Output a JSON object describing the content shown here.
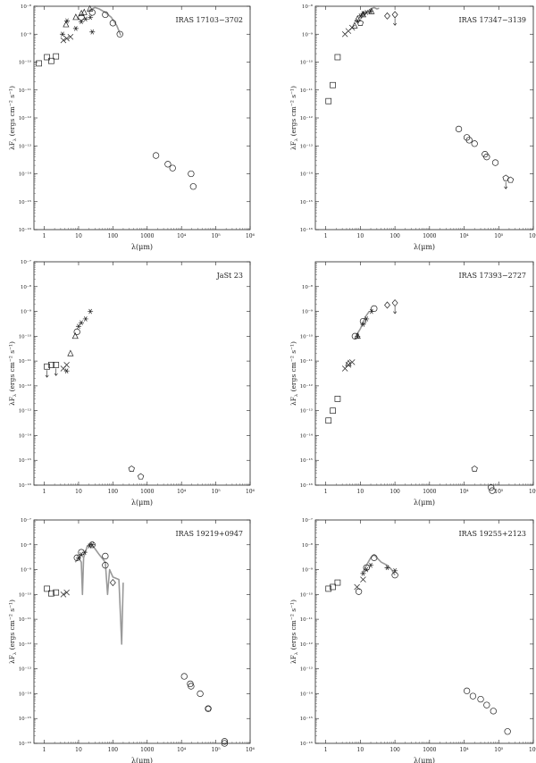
{
  "figure": {
    "ylabel_main": "λF",
    "ylabel_sub": "λ",
    "ylabel_units": "(ergs cm⁻² s⁻¹)",
    "xlabel": "λ(μm)"
  },
  "x_ticks": [
    {
      "v": 1,
      "label": "1"
    },
    {
      "v": 10,
      "label": "10"
    },
    {
      "v": 100,
      "label": "100"
    },
    {
      "v": 1000,
      "label": "1000"
    },
    {
      "v": 10000,
      "label": "10⁴"
    },
    {
      "v": 100000,
      "label": "10⁵"
    },
    {
      "v": 1000000,
      "label": "10⁶"
    }
  ],
  "y_tick_labels": {
    "-7": "10⁻⁷",
    "-8": "10⁻⁸",
    "-9": "10⁻⁹",
    "-10": "10⁻¹⁰",
    "-11": "10⁻¹¹",
    "-12": "10⁻¹²",
    "-13": "10⁻¹³",
    "-14": "10⁻¹⁴",
    "-15": "10⁻¹⁵",
    "-16": "10⁻¹⁶"
  },
  "chart_data": [
    {
      "type": "scatter",
      "title": "IRAS 17103−3702",
      "xscale": "log",
      "yscale": "log",
      "xlim": [
        0.5,
        1000000
      ],
      "ylim": [
        1e-16,
        1e-08
      ],
      "y_ticks": [
        -8,
        -9,
        -10,
        -11,
        -12,
        -13,
        -14,
        -15,
        -16
      ],
      "series": [
        {
          "marker": "square",
          "points": [
            [
              0.7,
              9e-11
            ],
            [
              1.2,
              1.5e-10
            ],
            [
              1.6,
              1.1e-10
            ],
            [
              2.2,
              1.6e-10
            ]
          ]
        },
        {
          "marker": "cross",
          "points": [
            [
              3.6,
              6e-10
            ],
            [
              4.5,
              7e-10
            ],
            [
              5.8,
              8e-10
            ]
          ]
        },
        {
          "marker": "triangle",
          "points": [
            [
              4.3,
              2.2e-09
            ],
            [
              8.3,
              4e-09
            ],
            [
              12.1,
              5.5e-09
            ],
            [
              14.6,
              6e-09
            ],
            [
              21.3,
              8e-09
            ]
          ]
        },
        {
          "marker": "asterisk",
          "points": [
            [
              3.4,
              1e-09
            ],
            [
              4.6,
              3e-09
            ],
            [
              8.3,
              1.6e-09
            ],
            [
              12,
              2.8e-09
            ],
            [
              16,
              3.5e-09
            ],
            [
              22,
              4e-09
            ],
            [
              25,
              1.2e-09
            ]
          ]
        },
        {
          "marker": "circle",
          "points": [
            [
              12,
              4e-09
            ],
            [
              25,
              6e-09
            ],
            [
              60,
              5e-09
            ],
            [
              100,
              2.5e-09
            ],
            [
              160,
              1e-09
            ],
            [
              1800,
              4.5e-14
            ],
            [
              4000,
              2.2e-14
            ],
            [
              5500,
              1.6e-14
            ],
            [
              19000,
              1e-14
            ],
            [
              22000,
              3.5e-15
            ]
          ]
        }
      ],
      "spectrum": [
        [
          20,
          7e-09
        ],
        [
          30,
          9e-09
        ],
        [
          40,
          8e-09
        ],
        [
          60,
          6e-09
        ],
        [
          90,
          4e-09
        ],
        [
          130,
          2e-09
        ],
        [
          170,
          9e-10
        ]
      ]
    },
    {
      "type": "scatter",
      "title": "IRAS 17347−3139",
      "xscale": "log",
      "yscale": "log",
      "xlim": [
        0.5,
        1000000
      ],
      "ylim": [
        1e-16,
        1e-08
      ],
      "y_ticks": [
        -8,
        -9,
        -10,
        -11,
        -12,
        -13,
        -14,
        -15,
        -16
      ],
      "series": [
        {
          "marker": "square",
          "points": [
            [
              1.2,
              4e-12
            ],
            [
              1.6,
              1.5e-11
            ],
            [
              2.2,
              1.5e-10
            ]
          ]
        },
        {
          "marker": "cross",
          "points": [
            [
              3.6,
              1e-09
            ],
            [
              4.5,
              1.3e-09
            ],
            [
              5.8,
              1.7e-09
            ]
          ]
        },
        {
          "marker": "triangle",
          "points": [
            [
              6.8,
              2e-09
            ],
            [
              8.3,
              3.5e-09
            ],
            [
              12,
              5e-09
            ],
            [
              21,
              6.5e-09
            ]
          ]
        },
        {
          "marker": "asterisk",
          "points": [
            [
              8.3,
              3e-09
            ],
            [
              10,
              4.5e-09
            ],
            [
              12,
              5.5e-09
            ],
            [
              15,
              6e-09
            ],
            [
              20,
              6.5e-09
            ]
          ]
        },
        {
          "marker": "circle",
          "points": [
            [
              7000,
              4e-13
            ],
            [
              12000,
              2e-13
            ],
            [
              14000,
              1.6e-13
            ],
            [
              20000,
              1.2e-13
            ],
            [
              40000,
              5e-14
            ],
            [
              45000,
              4e-14
            ],
            [
              80000,
              2.5e-14
            ]
          ]
        },
        {
          "marker": "diamond",
          "points": [
            [
              60,
              4.5e-09
            ],
            [
              100,
              5e-09
            ]
          ]
        },
        {
          "marker": "pentagon",
          "points": [
            [
              10,
              2.5e-09
            ],
            [
              160000,
              7e-15
            ],
            [
              220000,
              6e-15
            ]
          ]
        }
      ],
      "upper_limits": [
        [
          100,
          5e-09
        ],
        [
          160000,
          7e-15
        ]
      ],
      "spectrum": [
        [
          10,
          3.5e-09
        ],
        [
          15,
          6e-09
        ],
        [
          20,
          8e-09
        ],
        [
          25,
          9e-09
        ],
        [
          30,
          8e-09
        ],
        [
          35,
          8.5e-09
        ]
      ]
    },
    {
      "type": "scatter",
      "title": "JaSt 23",
      "xscale": "log",
      "yscale": "log",
      "xlim": [
        0.5,
        1000000
      ],
      "ylim": [
        1e-16,
        1e-07
      ],
      "y_ticks": [
        -7,
        -8,
        -9,
        -10,
        -11,
        -12,
        -13,
        -14,
        -15,
        -16
      ],
      "series": [
        {
          "marker": "square",
          "points": [
            [
              1.2,
              6e-12
            ],
            [
              1.6,
              7e-12
            ],
            [
              2.2,
              7e-12
            ]
          ]
        },
        {
          "marker": "cross",
          "points": [
            [
              3.6,
              5e-12
            ],
            [
              4.5,
              7e-12
            ]
          ]
        },
        {
          "marker": "triangle",
          "points": [
            [
              5.8,
              2e-11
            ],
            [
              8,
              1e-10
            ]
          ]
        },
        {
          "marker": "asterisk",
          "points": [
            [
              4.5,
              4e-12
            ],
            [
              10,
              2.5e-10
            ],
            [
              12,
              3.5e-10
            ],
            [
              16,
              5e-10
            ],
            [
              22,
              1e-09
            ]
          ]
        },
        {
          "marker": "circle",
          "points": [
            [
              9,
              1.5e-10
            ]
          ]
        },
        {
          "marker": "pentagon",
          "points": [
            [
              350,
              4.5e-16
            ],
            [
              650,
              2.2e-16
            ]
          ]
        }
      ],
      "upper_limits": [
        [
          1.2,
          6e-12
        ],
        [
          2.2,
          7e-12
        ]
      ],
      "spectrum": []
    },
    {
      "type": "scatter",
      "title": "IRAS 17393−2727",
      "xscale": "log",
      "yscale": "log",
      "xlim": [
        0.5,
        1000000
      ],
      "ylim": [
        1e-16,
        1e-07
      ],
      "y_ticks": [
        -8,
        -9,
        -10,
        -11,
        -12,
        -13,
        -14,
        -15,
        -16
      ],
      "series": [
        {
          "marker": "square",
          "points": [
            [
              1.2,
              4e-14
            ],
            [
              1.6,
              1e-13
            ],
            [
              2.2,
              3e-13
            ]
          ]
        },
        {
          "marker": "cross",
          "points": [
            [
              3.6,
              5e-12
            ],
            [
              4.5,
              7e-12
            ],
            [
              5.8,
              9e-12
            ]
          ]
        },
        {
          "marker": "triangle",
          "points": [
            [
              4.5,
              8e-12
            ],
            [
              8.3,
              1e-10
            ]
          ]
        },
        {
          "marker": "asterisk",
          "points": [
            [
              8.3,
              1e-10
            ],
            [
              12,
              3e-10
            ],
            [
              15,
              5e-10
            ],
            [
              21,
              1e-09
            ]
          ]
        },
        {
          "marker": "circle",
          "points": [
            [
              7,
              1e-10
            ],
            [
              12,
              4e-10
            ],
            [
              25,
              1.3e-09
            ],
            [
              60000,
              8e-17
            ],
            [
              65000,
              6e-17
            ]
          ]
        },
        {
          "marker": "diamond",
          "points": [
            [
              60,
              1.8e-09
            ],
            [
              100,
              2.2e-09
            ]
          ]
        },
        {
          "marker": "pentagon",
          "points": [
            [
              20000,
              4.5e-16
            ]
          ]
        }
      ],
      "upper_limits": [
        [
          100,
          2.2e-09
        ]
      ],
      "spectrum": [
        [
          8,
          1.2e-10
        ],
        [
          10,
          2e-10
        ],
        [
          14,
          6e-10
        ],
        [
          18,
          1e-09
        ]
      ]
    },
    {
      "type": "scatter",
      "title": "IRAS 19219+0947",
      "xscale": "log",
      "yscale": "log",
      "xlim": [
        0.5,
        1000000
      ],
      "ylim": [
        1e-16,
        1e-07
      ],
      "y_ticks": [
        -7,
        -8,
        -9,
        -10,
        -11,
        -12,
        -13,
        -14,
        -15,
        -16
      ],
      "series": [
        {
          "marker": "square",
          "points": [
            [
              1.2,
              1.7e-10
            ],
            [
              1.6,
              1.1e-10
            ],
            [
              2.2,
              1.2e-10
            ]
          ]
        },
        {
          "marker": "cross",
          "points": [
            [
              3.6,
              1e-10
            ],
            [
              4.5,
              1.2e-10
            ]
          ]
        },
        {
          "marker": "asterisk",
          "points": [
            [
              10,
              3e-09
            ],
            [
              12,
              4e-09
            ],
            [
              15,
              5e-09
            ],
            [
              21,
              9e-09
            ],
            [
              25,
              1e-08
            ]
          ]
        },
        {
          "marker": "circle",
          "points": [
            [
              9,
              3e-09
            ],
            [
              12,
              5e-09
            ],
            [
              25,
              1e-08
            ],
            [
              60,
              3.5e-09
            ],
            [
              60,
              1.5e-09
            ],
            [
              12000,
              5e-14
            ],
            [
              18000,
              2.5e-14
            ],
            [
              19000,
              2e-14
            ],
            [
              35000,
              1e-14
            ],
            [
              60000,
              2.5e-15
            ],
            [
              180000,
              1.2e-16
            ],
            [
              180000,
              1e-16
            ]
          ]
        },
        {
          "marker": "diamond",
          "points": [
            [
              100,
              3e-10
            ]
          ]
        },
        {
          "marker": "pentagon",
          "points": [
            [
              60000,
              2.5e-15
            ]
          ]
        }
      ],
      "spectrum": [
        [
          8,
          2e-09
        ],
        [
          10,
          3e-09
        ],
        [
          12,
          2e-09
        ],
        [
          13,
          1e-10
        ],
        [
          14,
          3e-09
        ],
        [
          18,
          9e-09
        ],
        [
          22,
          1.1e-08
        ],
        [
          30,
          7e-09
        ],
        [
          40,
          4e-09
        ],
        [
          60,
          2e-09
        ],
        [
          70,
          1e-10
        ],
        [
          80,
          1e-09
        ],
        [
          100,
          5e-10
        ],
        [
          150,
          4e-10
        ],
        [
          180,
          1e-12
        ],
        [
          200,
          3e-10
        ]
      ]
    },
    {
      "type": "scatter",
      "title": "IRAS 19255+2123",
      "xscale": "log",
      "yscale": "log",
      "xlim": [
        0.5,
        1000000
      ],
      "ylim": [
        1e-16,
        1e-07
      ],
      "y_ticks": [
        -7,
        -8,
        -9,
        -10,
        -11,
        -12,
        -13,
        -14,
        -15,
        -16
      ],
      "series": [
        {
          "marker": "square",
          "points": [
            [
              1.2,
              1.7e-10
            ],
            [
              1.6,
              2e-10
            ],
            [
              2.2,
              3e-10
            ]
          ]
        },
        {
          "marker": "cross",
          "points": [
            [
              8,
              2e-10
            ],
            [
              12,
              4e-10
            ]
          ]
        },
        {
          "marker": "asterisk",
          "points": [
            [
              12,
              7e-10
            ],
            [
              15,
              1e-09
            ],
            [
              20,
              1.5e-09
            ],
            [
              60,
              1.2e-09
            ],
            [
              100,
              9e-10
            ]
          ]
        },
        {
          "marker": "circle",
          "points": [
            [
              9,
              1.3e-10
            ],
            [
              15,
              1.2e-09
            ],
            [
              25,
              3e-09
            ],
            [
              100,
              6e-10
            ],
            [
              12000,
              1.3e-14
            ],
            [
              18000,
              8e-15
            ],
            [
              30000,
              6e-15
            ],
            [
              45000,
              3.5e-15
            ],
            [
              70000,
              2e-15
            ],
            [
              180000,
              3e-16
            ]
          ]
        }
      ],
      "spectrum": [
        [
          12,
          8e-10
        ],
        [
          15,
          1.5e-09
        ],
        [
          20,
          3e-09
        ],
        [
          25,
          4e-09
        ],
        [
          30,
          3e-09
        ],
        [
          40,
          2e-09
        ],
        [
          60,
          1.5e-09
        ],
        [
          80,
          1e-09
        ],
        [
          100,
          6e-10
        ]
      ]
    }
  ]
}
